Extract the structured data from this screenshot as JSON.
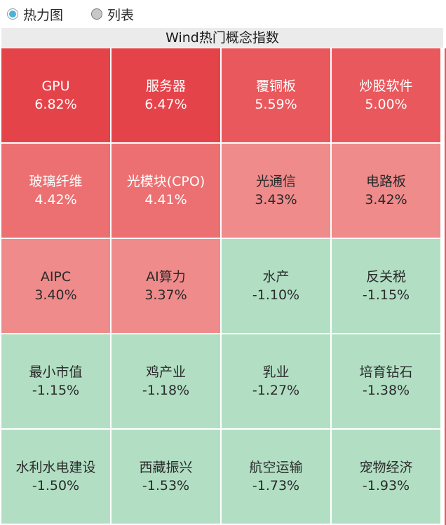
{
  "view_toggle": {
    "options": [
      {
        "label": "热力图",
        "selected": true
      },
      {
        "label": "列表",
        "selected": false
      }
    ]
  },
  "panel": {
    "title": "Wind热门概念指数"
  },
  "cells": [
    {
      "name": "GPU",
      "value": "6.82%",
      "color": "#e5434a",
      "text_color": "#ffffff"
    },
    {
      "name": "服务器",
      "value": "6.47%",
      "color": "#e5434a",
      "text_color": "#ffffff"
    },
    {
      "name": "覆铜板",
      "value": "5.59%",
      "color": "#e9585c",
      "text_color": "#ffffff"
    },
    {
      "name": "炒股软件",
      "value": "5.00%",
      "color": "#e9585c",
      "text_color": "#ffffff"
    },
    {
      "name": "玻璃纤维",
      "value": "4.42%",
      "color": "#ec7071",
      "text_color": "#ffffff"
    },
    {
      "name": "光模块(CPO)",
      "value": "4.41%",
      "color": "#ec7071",
      "text_color": "#ffffff"
    },
    {
      "name": "光通信",
      "value": "3.43%",
      "color": "#ef8b8b",
      "text_color": "#2a2a2a"
    },
    {
      "name": "电路板",
      "value": "3.42%",
      "color": "#ef8b8b",
      "text_color": "#2a2a2a"
    },
    {
      "name": "AIPC",
      "value": "3.40%",
      "color": "#ef8b8b",
      "text_color": "#2a2a2a"
    },
    {
      "name": "AI算力",
      "value": "3.37%",
      "color": "#ef8b8b",
      "text_color": "#2a2a2a"
    },
    {
      "name": "水产",
      "value": "-1.10%",
      "color": "#b2dfc4",
      "text_color": "#2a2a2a"
    },
    {
      "name": "反关税",
      "value": "-1.15%",
      "color": "#b2dfc4",
      "text_color": "#2a2a2a"
    },
    {
      "name": "最小市值",
      "value": "-1.15%",
      "color": "#b2dfc4",
      "text_color": "#2a2a2a"
    },
    {
      "name": "鸡产业",
      "value": "-1.18%",
      "color": "#b2dfc4",
      "text_color": "#2a2a2a"
    },
    {
      "name": "乳业",
      "value": "-1.27%",
      "color": "#b2dfc4",
      "text_color": "#2a2a2a"
    },
    {
      "name": "培育钻石",
      "value": "-1.38%",
      "color": "#b2dfc4",
      "text_color": "#2a2a2a"
    },
    {
      "name": "水利水电建设",
      "value": "-1.50%",
      "color": "#b2dfc4",
      "text_color": "#2a2a2a"
    },
    {
      "name": "西藏振兴",
      "value": "-1.53%",
      "color": "#b2dfc4",
      "text_color": "#2a2a2a"
    },
    {
      "name": "航空运输",
      "value": "-1.73%",
      "color": "#b2dfc4",
      "text_color": "#2a2a2a"
    },
    {
      "name": "宠物经济",
      "value": "-1.93%",
      "color": "#b2dfc4",
      "text_color": "#2a2a2a"
    }
  ]
}
